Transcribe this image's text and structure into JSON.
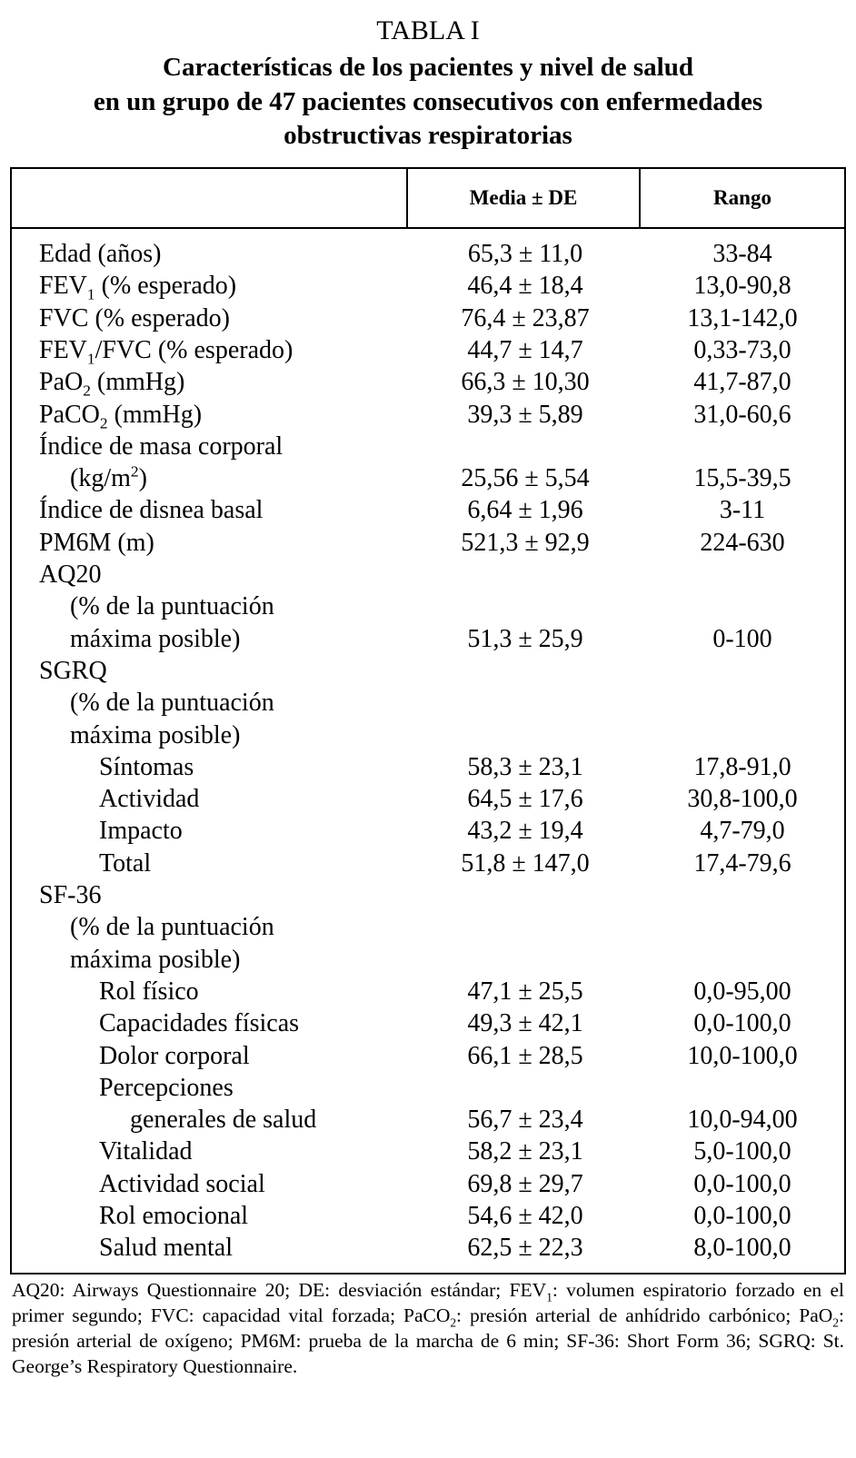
{
  "table_label": "TABLA I",
  "title_lines": [
    "Características de los pacientes y nivel de salud",
    "en un grupo de 47 pacientes consecutivos con enfermedades",
    "obstructivas respiratorias"
  ],
  "columns": [
    "",
    "Media ± DE",
    "Rango"
  ],
  "rows": [
    {
      "label": [
        {
          "t": "Edad (años)"
        }
      ],
      "indent": 0,
      "mean": "65,3 ± 11,0",
      "range": "33-84"
    },
    {
      "label": [
        {
          "t": "FEV"
        },
        {
          "t": "1",
          "sub": true
        },
        {
          "t": " (% esperado)"
        }
      ],
      "indent": 0,
      "mean": "46,4 ± 18,4",
      "range": "13,0-90,8"
    },
    {
      "label": [
        {
          "t": "FVC (% esperado)"
        }
      ],
      "indent": 0,
      "mean": "76,4 ± 23,87",
      "range": "13,1-142,0"
    },
    {
      "label": [
        {
          "t": "FEV"
        },
        {
          "t": "1",
          "sub": true
        },
        {
          "t": "/FVC (% esperado)"
        }
      ],
      "indent": 0,
      "mean": "44,7 ± 14,7",
      "range": "0,33-73,0"
    },
    {
      "label": [
        {
          "t": "PaO"
        },
        {
          "t": "2",
          "sub": true
        },
        {
          "t": " (mmHg)"
        }
      ],
      "indent": 0,
      "mean": "66,3 ± 10,30",
      "range": "41,7-87,0"
    },
    {
      "label": [
        {
          "t": "PaCO"
        },
        {
          "t": "2",
          "sub": true
        },
        {
          "t": " (mmHg)"
        }
      ],
      "indent": 0,
      "mean": "39,3 ± 5,89",
      "range": "31,0-60,6"
    },
    {
      "label": [
        {
          "t": "Índice de masa corporal"
        }
      ],
      "indent": 0,
      "mean": "",
      "range": ""
    },
    {
      "label": [
        {
          "t": "(kg/m"
        },
        {
          "t": "2",
          "sup": true
        },
        {
          "t": ")"
        }
      ],
      "indent": 1,
      "mean": "25,56 ± 5,54",
      "range": "15,5-39,5"
    },
    {
      "label": [
        {
          "t": "Índice de disnea basal"
        }
      ],
      "indent": 0,
      "mean": "6,64 ± 1,96",
      "range": "3-11"
    },
    {
      "label": [
        {
          "t": "PM6M (m)"
        }
      ],
      "indent": 0,
      "mean": "521,3 ± 92,9",
      "range": "224-630"
    },
    {
      "label": [
        {
          "t": "AQ20"
        }
      ],
      "indent": 0,
      "mean": "",
      "range": ""
    },
    {
      "label": [
        {
          "t": "(% de la puntuación"
        }
      ],
      "indent": 1,
      "mean": "",
      "range": ""
    },
    {
      "label": [
        {
          "t": "máxima posible)"
        }
      ],
      "indent": 1,
      "mean": "51,3 ± 25,9",
      "range": "0-100"
    },
    {
      "label": [
        {
          "t": "SGRQ"
        }
      ],
      "indent": 0,
      "mean": "",
      "range": ""
    },
    {
      "label": [
        {
          "t": "(% de la puntuación"
        }
      ],
      "indent": 1,
      "mean": "",
      "range": ""
    },
    {
      "label": [
        {
          "t": "máxima posible)"
        }
      ],
      "indent": 1,
      "mean": "",
      "range": ""
    },
    {
      "label": [
        {
          "t": "Síntomas"
        }
      ],
      "indent": 2,
      "mean": "58,3 ± 23,1",
      "range": "17,8-91,0"
    },
    {
      "label": [
        {
          "t": "Actividad"
        }
      ],
      "indent": 2,
      "mean": "64,5 ± 17,6",
      "range": "30,8-100,0"
    },
    {
      "label": [
        {
          "t": "Impacto"
        }
      ],
      "indent": 2,
      "mean": "43,2 ± 19,4",
      "range": "4,7-79,0"
    },
    {
      "label": [
        {
          "t": "Total"
        }
      ],
      "indent": 2,
      "mean": "51,8 ± 147,0",
      "range": "17,4-79,6"
    },
    {
      "label": [
        {
          "t": "SF-36"
        }
      ],
      "indent": 0,
      "mean": "",
      "range": ""
    },
    {
      "label": [
        {
          "t": "(% de la puntuación"
        }
      ],
      "indent": 1,
      "mean": "",
      "range": ""
    },
    {
      "label": [
        {
          "t": "máxima posible)"
        }
      ],
      "indent": 1,
      "mean": "",
      "range": ""
    },
    {
      "label": [
        {
          "t": "Rol físico"
        }
      ],
      "indent": 2,
      "mean": "47,1 ± 25,5",
      "range": "0,0-95,00"
    },
    {
      "label": [
        {
          "t": "Capacidades físicas"
        }
      ],
      "indent": 2,
      "mean": "49,3 ± 42,1",
      "range": "0,0-100,0"
    },
    {
      "label": [
        {
          "t": "Dolor corporal"
        }
      ],
      "indent": 2,
      "mean": "66,1 ± 28,5",
      "range": "10,0-100,0"
    },
    {
      "label": [
        {
          "t": "Percepciones"
        }
      ],
      "indent": 2,
      "mean": "",
      "range": ""
    },
    {
      "label": [
        {
          "t": "generales de salud"
        }
      ],
      "indent": 3,
      "mean": "56,7 ± 23,4",
      "range": "10,0-94,00"
    },
    {
      "label": [
        {
          "t": "Vitalidad"
        }
      ],
      "indent": 2,
      "mean": "58,2 ± 23,1",
      "range": "5,0-100,0"
    },
    {
      "label": [
        {
          "t": "Actividad social"
        }
      ],
      "indent": 2,
      "mean": "69,8 ± 29,7",
      "range": "0,0-100,0"
    },
    {
      "label": [
        {
          "t": "Rol emocional"
        }
      ],
      "indent": 2,
      "mean": "54,6 ± 42,0",
      "range": "0,0-100,0"
    },
    {
      "label": [
        {
          "t": "Salud mental"
        }
      ],
      "indent": 2,
      "mean": "62,5 ± 22,3",
      "range": "8,0-100,0"
    }
  ],
  "footnote": [
    {
      "t": "AQ20: Airways Questionnaire 20; DE: desviación estándar; FEV"
    },
    {
      "t": "1",
      "sub": true
    },
    {
      "t": ": volumen espiratorio forzado en el primer segundo; FVC: capacidad vital forzada; PaCO"
    },
    {
      "t": "2",
      "sub": true
    },
    {
      "t": ": presión arterial de anhídrido carbónico; PaO"
    },
    {
      "t": "2",
      "sub": true
    },
    {
      "t": ": presión arterial de oxígeno; PM6M: prueba de la marcha de 6 min; SF-36: Short Form 36; SGRQ: St. George’s Respiratory Questionnaire."
    }
  ]
}
